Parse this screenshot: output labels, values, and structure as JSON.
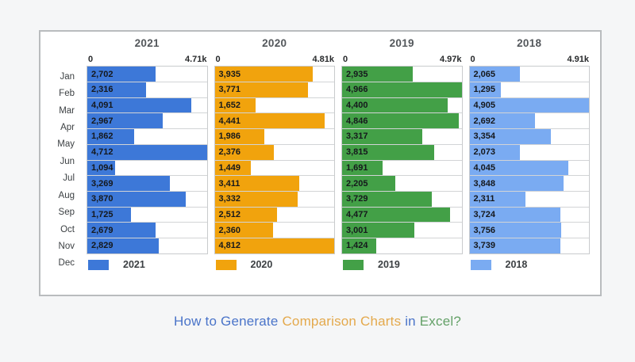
{
  "page": {
    "background": "#f5f6f7",
    "title_parts": [
      {
        "text": "How to Generate ",
        "color": "#4a74c9"
      },
      {
        "text": "Comparison Charts",
        "color": "#e4a94c"
      },
      {
        "text": " in ",
        "color": "#4a74c9"
      },
      {
        "text": "Excel?",
        "color": "#64a168"
      }
    ]
  },
  "chart_data": {
    "type": "bar",
    "orientation": "horizontal",
    "grid": "horizontal-row-separators",
    "legend_position": "bottom-per-panel",
    "value_format": "thousands-comma",
    "categories": [
      "Jan",
      "Feb",
      "Mar",
      "Apr",
      "May",
      "Jun",
      "Jul",
      "Aug",
      "Sep",
      "Oct",
      "Nov",
      "Dec"
    ],
    "series": [
      {
        "name": "2021",
        "color": "#3d78d8",
        "axis_min_label": "0",
        "axis_max_label": "4.71k",
        "axis_range": [
          0,
          4712
        ],
        "values": [
          2702,
          2316,
          4091,
          2967,
          1862,
          4712,
          1094,
          3269,
          3870,
          1725,
          2679,
          2829
        ],
        "value_labels": [
          "2,702",
          "2,316",
          "4,091",
          "2,967",
          "1,862",
          "4,712",
          "1,094",
          "3,269",
          "3,870",
          "1,725",
          "2,679",
          "2,829"
        ]
      },
      {
        "name": "2020",
        "color": "#f1a30d",
        "axis_min_label": "0",
        "axis_max_label": "4.81k",
        "axis_range": [
          0,
          4812
        ],
        "values": [
          3935,
          3771,
          1652,
          4441,
          1986,
          2376,
          1449,
          3411,
          3332,
          2512,
          2360,
          4812
        ],
        "value_labels": [
          "3,935",
          "3,771",
          "1,652",
          "4,441",
          "1,986",
          "2,376",
          "1,449",
          "3,411",
          "3,332",
          "2,512",
          "2,360",
          "4,812"
        ]
      },
      {
        "name": "2019",
        "color": "#43a047",
        "axis_min_label": "0",
        "axis_max_label": "4.97k",
        "axis_range": [
          0,
          4966
        ],
        "values": [
          2935,
          4966,
          4400,
          4846,
          3317,
          3815,
          1691,
          2205,
          3729,
          4477,
          3001,
          1424
        ],
        "value_labels": [
          "2,935",
          "4,966",
          "4,400",
          "4,846",
          "3,317",
          "3,815",
          "1,691",
          "2,205",
          "3,729",
          "4,477",
          "3,001",
          "1,424"
        ]
      },
      {
        "name": "2018",
        "color": "#7aabf2",
        "axis_min_label": "0",
        "axis_max_label": "4.91k",
        "axis_range": [
          0,
          4905
        ],
        "values": [
          2065,
          1295,
          4905,
          2692,
          3354,
          2073,
          4045,
          3848,
          2311,
          3724,
          3756,
          3739
        ],
        "value_labels": [
          "2,065",
          "1,295",
          "4,905",
          "2,692",
          "3,354",
          "2,073",
          "4,045",
          "3,848",
          "2,311",
          "3,724",
          "3,756",
          "3,739"
        ]
      }
    ]
  }
}
